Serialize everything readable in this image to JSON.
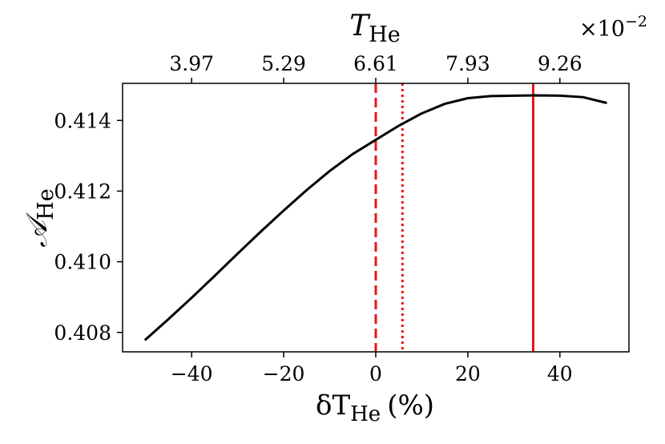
{
  "chart_data": {
    "type": "line",
    "xlabel_main": "δT",
    "xlabel_sub": "He",
    "xlabel_unit": "(%)",
    "ylabel_main": "𝒜",
    "ylabel_sub": "He",
    "top_xlabel_main": "T",
    "top_xlabel_sub": "He",
    "top_multiplier_base": "×10",
    "top_multiplier_exp": "−2",
    "xlim": [
      -55,
      55
    ],
    "ylim": [
      0.40745,
      0.41505
    ],
    "x_ticks": [
      -40,
      -20,
      0,
      20,
      40
    ],
    "x_tick_labels": [
      "−40",
      "−20",
      "0",
      "20",
      "40"
    ],
    "y_ticks": [
      0.408,
      0.41,
      0.412,
      0.414
    ],
    "y_tick_labels": [
      "0.408",
      "0.410",
      "0.412",
      "0.414"
    ],
    "top_x_ticks": [
      -40,
      -20,
      0,
      20,
      40
    ],
    "top_x_tick_labels": [
      "3.97",
      "5.29",
      "6.61",
      "7.93",
      "9.26"
    ],
    "series": [
      {
        "color": "#000000",
        "x": [
          -50,
          -45,
          -40,
          -35,
          -30,
          -25,
          -20,
          -15,
          -10,
          -5,
          0,
          5,
          10,
          15,
          20,
          25,
          30,
          35,
          40,
          45,
          50
        ],
        "y": [
          0.4078,
          0.40838,
          0.40898,
          0.4096,
          0.41023,
          0.41085,
          0.41145,
          0.41203,
          0.41257,
          0.41305,
          0.41345,
          0.41385,
          0.4142,
          0.41447,
          0.41463,
          0.41469,
          0.4147,
          0.41471,
          0.4147,
          0.41466,
          0.4145
        ]
      }
    ],
    "vlines": [
      {
        "x": 0,
        "style": "dashed",
        "color": "#e8141c"
      },
      {
        "x": 5.8,
        "style": "dotted",
        "color": "#e8141c"
      },
      {
        "x": 34.2,
        "style": "solid",
        "color": "#e8141c"
      }
    ],
    "grid": false
  }
}
